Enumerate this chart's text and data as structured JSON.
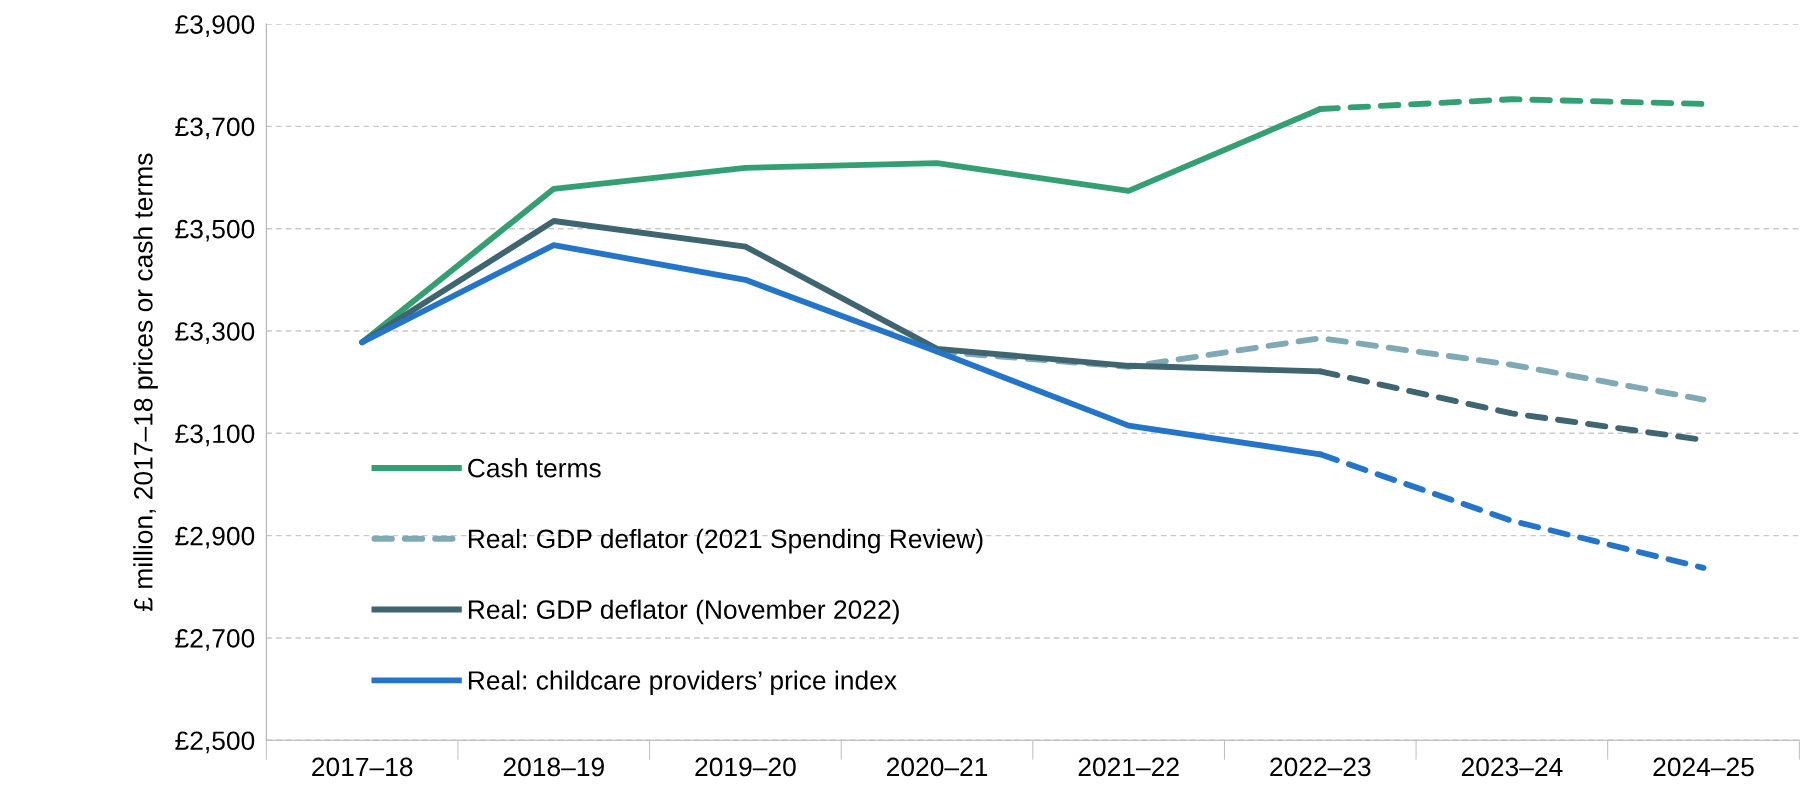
{
  "chart_data": {
    "type": "line",
    "ylabel": "£ million, 2017–18 prices or cash terms",
    "categories": [
      "2017–18",
      "2018–19",
      "2019–20",
      "2020–21",
      "2021–22",
      "2022–23",
      "2023–24",
      "2024–25"
    ],
    "series": [
      {
        "name": "Cash terms",
        "color": "#339f73",
        "line_style": "solid",
        "values": [
          3278,
          3578,
          3619,
          3628,
          3574,
          3734,
          null,
          null
        ]
      },
      {
        "color": "#339f73",
        "line_style": "dashed",
        "values": [
          null,
          null,
          null,
          null,
          null,
          3734,
          3753,
          3744
        ]
      },
      {
        "name": "Real: GDP deflator (2021 Spending Review)",
        "color": "#7faab5",
        "line_style": "dashed",
        "values": [
          null,
          null,
          null,
          3260,
          3230,
          3286,
          3234,
          3166
        ]
      },
      {
        "name": "Real: GDP deflator (November 2022)",
        "color": "#3f6570",
        "line_style": "solid",
        "values": [
          3278,
          3515,
          3465,
          3265,
          3232,
          3221,
          null,
          null
        ]
      },
      {
        "color": "#3f6570",
        "line_style": "dashed",
        "values": [
          null,
          null,
          null,
          null,
          null,
          3221,
          3139,
          3087
        ]
      },
      {
        "name": "Real: childcare providers’ price index",
        "color": "#2475c9",
        "line_style": "solid",
        "values": [
          3278,
          3468,
          3400,
          3260,
          3115,
          3059,
          null,
          null
        ]
      },
      {
        "color": "#2475c9",
        "line_style": "dashed",
        "values": [
          null,
          null,
          null,
          null,
          null,
          3059,
          2929,
          2837
        ]
      }
    ],
    "ylim": [
      2500,
      3900
    ],
    "yticks": [
      {
        "value": 2500,
        "label": "£2,500"
      },
      {
        "value": 2700,
        "label": "£2,700"
      },
      {
        "value": 2900,
        "label": "£2,900"
      },
      {
        "value": 3100,
        "label": "£3,100"
      },
      {
        "value": 3300,
        "label": "£3,300"
      },
      {
        "value": 3500,
        "label": "£3,500"
      },
      {
        "value": 3700,
        "label": "£3,700"
      },
      {
        "value": 3900,
        "label": "£3,900"
      }
    ],
    "grid": "y",
    "legend": "bottom left",
    "marker": "none"
  }
}
